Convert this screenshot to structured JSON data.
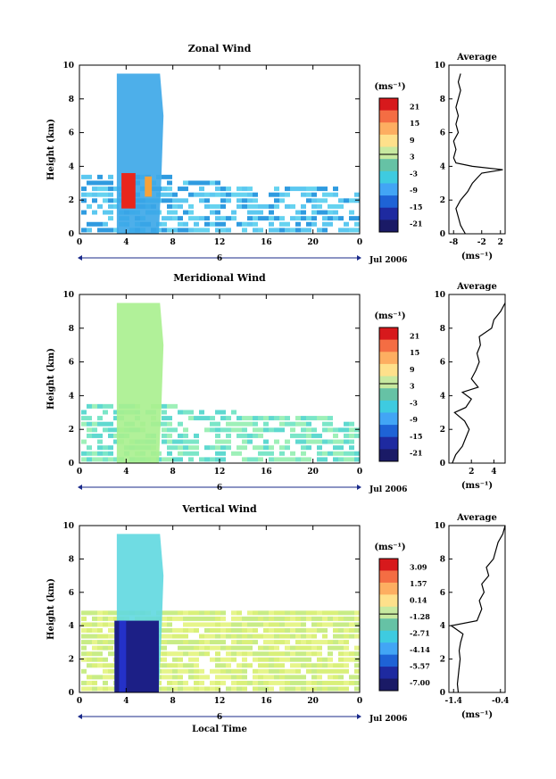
{
  "chart_data": [
    {
      "type": "heatmap",
      "title": "Zonal Wind",
      "ylabel": "Height (km)",
      "ylim": [
        0,
        10
      ],
      "yticks": [
        "0",
        "2",
        "4",
        "6",
        "8",
        "10"
      ],
      "xlim": [
        0,
        24
      ],
      "xticks": [
        "0",
        "4",
        "8",
        "12",
        "16",
        "20",
        "0"
      ],
      "date_marker": "6",
      "date_label": "Jul 2006",
      "colorbar": {
        "unit": "(ms⁻¹)",
        "ticks": [
          "21",
          "15",
          "9",
          "3",
          "-3",
          "-9",
          "-15",
          "-21"
        ]
      },
      "average": {
        "title": "Average",
        "xlabel": "(ms⁻¹)",
        "xticks": [
          "-8",
          "-2",
          "2"
        ],
        "xlim": [
          -9,
          3
        ],
        "ylim": [
          0,
          10
        ],
        "yticks": [
          "0",
          "2",
          "4",
          "6",
          "8",
          "10"
        ],
        "profile": [
          [
            -5.5,
            0
          ],
          [
            -6.5,
            0.5
          ],
          [
            -7,
            1
          ],
          [
            -7.5,
            1.5
          ],
          [
            -6.5,
            2
          ],
          [
            -5,
            2.5
          ],
          [
            -4,
            3
          ],
          [
            -3,
            3.3
          ],
          [
            -2,
            3.6
          ],
          [
            2.5,
            3.8
          ],
          [
            -4,
            4
          ],
          [
            -7.5,
            4.2
          ],
          [
            -8,
            4.5
          ],
          [
            -7.5,
            5
          ],
          [
            -8,
            5.5
          ],
          [
            -7,
            6
          ],
          [
            -7.5,
            6.5
          ],
          [
            -7,
            7
          ],
          [
            -7.5,
            7.5
          ],
          [
            -7,
            8
          ],
          [
            -6.5,
            8.5
          ],
          [
            -7,
            9
          ],
          [
            -6.5,
            9.5
          ]
        ]
      }
    },
    {
      "type": "heatmap",
      "title": "Meridional Wind",
      "ylabel": "Height (km)",
      "ylim": [
        0,
        10
      ],
      "yticks": [
        "0",
        "2",
        "4",
        "6",
        "8",
        "10"
      ],
      "xlim": [
        0,
        24
      ],
      "xticks": [
        "0",
        "4",
        "8",
        "12",
        "16",
        "20",
        "0"
      ],
      "date_marker": "6",
      "date_label": "Jul 2006",
      "colorbar": {
        "unit": "(ms⁻¹)",
        "ticks": [
          "21",
          "15",
          "9",
          "3",
          "-3",
          "-9",
          "-15",
          "-21"
        ]
      },
      "average": {
        "title": "Average",
        "xlabel": "(ms⁻¹)",
        "xticks": [
          "2",
          "4"
        ],
        "xlim": [
          0,
          5
        ],
        "ylim": [
          0,
          10
        ],
        "yticks": [
          "0",
          "2",
          "4",
          "6",
          "8",
          "10"
        ],
        "profile": [
          [
            0.3,
            0
          ],
          [
            0.6,
            0.5
          ],
          [
            1.2,
            1
          ],
          [
            1.5,
            1.5
          ],
          [
            1.8,
            2
          ],
          [
            1.4,
            2.5
          ],
          [
            0.5,
            3
          ],
          [
            1.5,
            3.3
          ],
          [
            2.0,
            3.8
          ],
          [
            1.2,
            4.2
          ],
          [
            2.6,
            4.5
          ],
          [
            2.0,
            5
          ],
          [
            2.4,
            5.5
          ],
          [
            2.7,
            6
          ],
          [
            2.5,
            6.5
          ],
          [
            2.8,
            7
          ],
          [
            2.7,
            7.5
          ],
          [
            3.8,
            8
          ],
          [
            4.0,
            8.5
          ],
          [
            4.6,
            9
          ],
          [
            5.0,
            9.5
          ]
        ]
      }
    },
    {
      "type": "heatmap",
      "title": "Vertical Wind",
      "xlabel": "Local Time",
      "ylabel": "Height (km)",
      "ylim": [
        0,
        10
      ],
      "yticks": [
        "0",
        "2",
        "4",
        "6",
        "8",
        "10"
      ],
      "xlim": [
        0,
        24
      ],
      "xticks": [
        "0",
        "4",
        "8",
        "12",
        "16",
        "20",
        "0"
      ],
      "date_marker": "6",
      "date_label": "Jul 2006",
      "colorbar": {
        "unit": "(ms⁻¹)",
        "ticks": [
          "3.09",
          "1.57",
          "0.14",
          "-1.28",
          "-2.71",
          "-4.14",
          "-5.57",
          "-7.00"
        ]
      },
      "average": {
        "title": "Average",
        "xlabel": "(ms⁻¹)",
        "xticks": [
          "-1.4",
          "-0.4"
        ],
        "xlim": [
          -1.5,
          -0.3
        ],
        "ylim": [
          0,
          10
        ],
        "yticks": [
          "0",
          "2",
          "4",
          "6",
          "8",
          "10"
        ],
        "profile": [
          [
            -1.3,
            0
          ],
          [
            -1.32,
            0.5
          ],
          [
            -1.3,
            1
          ],
          [
            -1.28,
            1.5
          ],
          [
            -1.26,
            2
          ],
          [
            -1.28,
            2.5
          ],
          [
            -1.25,
            3
          ],
          [
            -1.2,
            3.5
          ],
          [
            -1.45,
            4
          ],
          [
            -0.9,
            4.3
          ],
          [
            -0.8,
            5
          ],
          [
            -0.85,
            5.5
          ],
          [
            -0.75,
            6
          ],
          [
            -0.8,
            6.5
          ],
          [
            -0.65,
            7
          ],
          [
            -0.7,
            7.5
          ],
          [
            -0.55,
            8
          ],
          [
            -0.5,
            8.5
          ],
          [
            -0.45,
            9
          ],
          [
            -0.35,
            9.5
          ],
          [
            -0.3,
            10
          ]
        ]
      }
    }
  ]
}
